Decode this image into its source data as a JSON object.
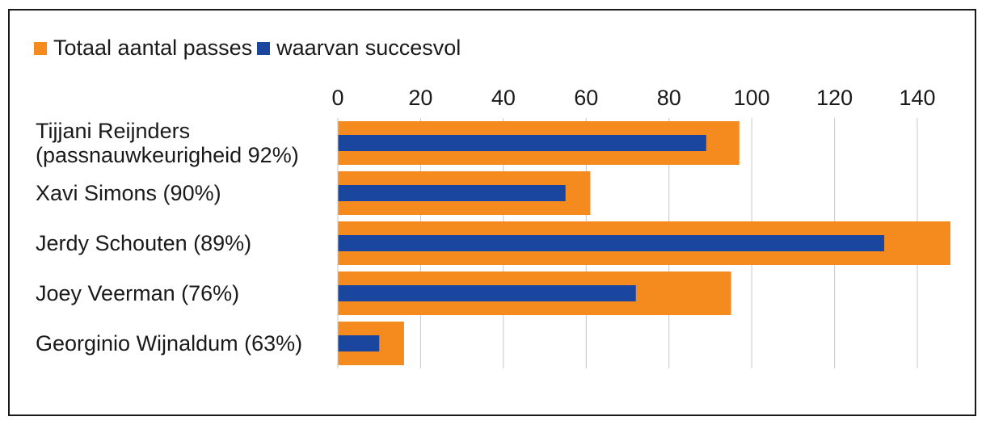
{
  "chart_data": {
    "type": "bar",
    "orientation": "horizontal",
    "categories": [
      [
        "Tijjani Reijnders",
        "(passnauwkeurigheid 92%)"
      ],
      [
        "Xavi Simons (90%)"
      ],
      [
        "Jerdy Schouten (89%)"
      ],
      [
        "Joey Veerman (76%)"
      ],
      [
        "Georginio Wijnaldum (63%)"
      ]
    ],
    "series": [
      {
        "name": "Totaal aantal passes",
        "color": "#f58a1f",
        "values": [
          97,
          61,
          148,
          95,
          16
        ]
      },
      {
        "name": "waarvan succesvol",
        "color": "#1a46a0",
        "values": [
          89,
          55,
          132,
          72,
          10
        ]
      }
    ],
    "xlim": [
      0,
      148
    ],
    "xticks": [
      0,
      20,
      40,
      60,
      80,
      100,
      120,
      140
    ],
    "grid": true,
    "legend_position": "top-left",
    "gridline_color": "#c8c8c8"
  }
}
